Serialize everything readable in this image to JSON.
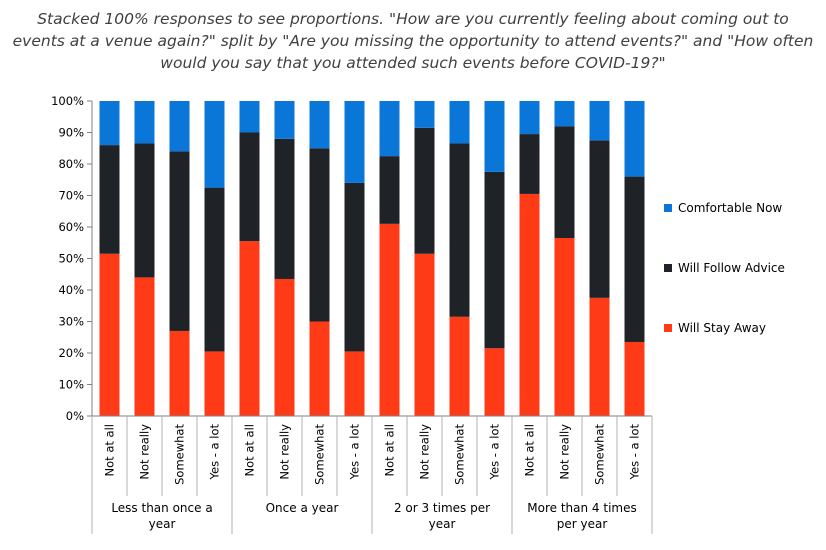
{
  "chart_data": {
    "type": "bar",
    "stacked": "percent",
    "title": "Stacked 100% responses to see proportions. \"How are you currently feeling about coming out to events at a venue again?\" split by \"Are you missing the opportunity to attend events?\" and \"How often would you say that you attended such events before COVID-19?\"",
    "ylim": [
      0,
      100
    ],
    "yticks": [
      "0%",
      "10%",
      "20%",
      "30%",
      "40%",
      "50%",
      "60%",
      "70%",
      "80%",
      "90%",
      "100%"
    ],
    "groups": [
      {
        "label": "Less than once a year",
        "categories": [
          "Not at all",
          "Not really",
          "Somewhat",
          "Yes - a lot"
        ]
      },
      {
        "label": "Once a year",
        "categories": [
          "Not at all",
          "Not really",
          "Somewhat",
          "Yes - a lot"
        ]
      },
      {
        "label": "2 or 3 times per year",
        "categories": [
          "Not at all",
          "Not really",
          "Somewhat",
          "Yes - a lot"
        ]
      },
      {
        "label": "More than 4 times per year",
        "categories": [
          "Not at all",
          "Not really",
          "Somewhat",
          "Yes - a lot"
        ]
      }
    ],
    "series": [
      {
        "name": "Will Stay Away",
        "color": "#ff3a17",
        "values": [
          51.5,
          44,
          27,
          20.5,
          55.5,
          43.5,
          30,
          20.5,
          61,
          51.5,
          31.5,
          21.5,
          70.5,
          56.5,
          37.5,
          23.5
        ]
      },
      {
        "name": "Will Follow Advice",
        "color": "#1f2328",
        "values": [
          34.5,
          42.5,
          57,
          52,
          34.5,
          44.5,
          55,
          53.5,
          21.5,
          40,
          55,
          56,
          19,
          35.5,
          50,
          52.5
        ]
      },
      {
        "name": "Comfortable Now",
        "color": "#0a76d8",
        "values": [
          14,
          13.5,
          16,
          27.5,
          10,
          12,
          15,
          26,
          17.5,
          8.5,
          13.5,
          22.5,
          10.5,
          8,
          12.5,
          24
        ]
      }
    ],
    "legend": {
      "position": "right",
      "order": [
        "Comfortable Now",
        "Will Follow Advice",
        "Will Stay Away"
      ]
    },
    "grid": false
  }
}
